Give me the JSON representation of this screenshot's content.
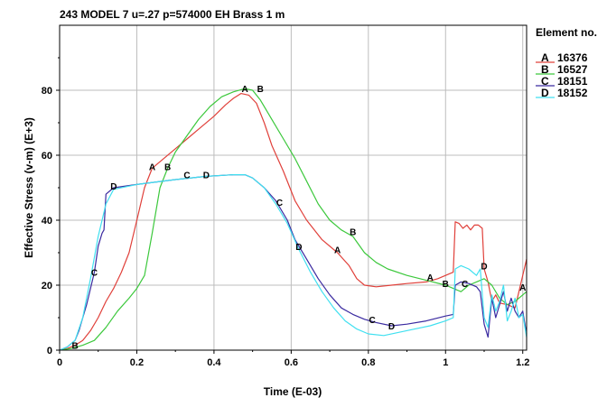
{
  "chart_data": {
    "type": "line",
    "title": "243 MODEL 7 u=.27 p=574000 EH Brass 1 m",
    "xlabel": "Time (E-03)",
    "ylabel": "Effective Stress (v-m) (E+3)",
    "xlim": [
      0,
      1.21
    ],
    "ylim": [
      0,
      100
    ],
    "x_ticks": [
      0,
      0.2,
      0.4,
      0.6,
      0.8,
      1,
      1.2
    ],
    "x_tick_labels": [
      "0",
      "0.2",
      "0.4",
      "0.6",
      "0.8",
      "1",
      "1.2"
    ],
    "y_ticks": [
      0,
      20,
      40,
      60,
      80
    ],
    "y_tick_labels": [
      "0",
      "20",
      "40",
      "60",
      "80"
    ],
    "grid": true,
    "legend": {
      "title": "Element no.",
      "position": "right"
    },
    "series": [
      {
        "letter": "A",
        "name": "16376",
        "color": "#e0403a",
        "markers": [
          [
            0.24,
            56.5
          ],
          [
            0.48,
            80.5
          ],
          [
            0.72,
            31.0
          ],
          [
            0.96,
            22.5
          ],
          [
            1.2,
            19.5
          ]
        ],
        "points": [
          [
            0.0,
            0
          ],
          [
            0.02,
            0.5
          ],
          [
            0.04,
            1.5
          ],
          [
            0.06,
            3
          ],
          [
            0.08,
            6
          ],
          [
            0.1,
            10
          ],
          [
            0.12,
            15
          ],
          [
            0.14,
            19
          ],
          [
            0.16,
            24
          ],
          [
            0.18,
            30
          ],
          [
            0.2,
            40
          ],
          [
            0.22,
            50
          ],
          [
            0.24,
            56
          ],
          [
            0.27,
            59
          ],
          [
            0.3,
            62
          ],
          [
            0.33,
            65
          ],
          [
            0.36,
            68
          ],
          [
            0.4,
            72
          ],
          [
            0.43,
            75.5
          ],
          [
            0.45,
            77.5
          ],
          [
            0.47,
            79
          ],
          [
            0.49,
            78.5
          ],
          [
            0.51,
            76
          ],
          [
            0.53,
            70
          ],
          [
            0.55,
            63
          ],
          [
            0.58,
            55
          ],
          [
            0.61,
            46
          ],
          [
            0.64,
            40
          ],
          [
            0.68,
            34
          ],
          [
            0.72,
            30
          ],
          [
            0.75,
            26
          ],
          [
            0.77,
            22
          ],
          [
            0.79,
            20
          ],
          [
            0.82,
            19.5
          ],
          [
            0.86,
            20
          ],
          [
            0.9,
            20.5
          ],
          [
            0.95,
            21
          ],
          [
            0.98,
            22
          ],
          [
            1.0,
            23
          ],
          [
            1.02,
            24
          ],
          [
            1.025,
            39.5
          ],
          [
            1.035,
            39
          ],
          [
            1.045,
            37.5
          ],
          [
            1.055,
            38.5
          ],
          [
            1.065,
            37
          ],
          [
            1.075,
            38.5
          ],
          [
            1.085,
            38.5
          ],
          [
            1.095,
            37.5
          ],
          [
            1.1,
            25
          ],
          [
            1.11,
            21
          ],
          [
            1.12,
            15
          ],
          [
            1.13,
            17
          ],
          [
            1.14,
            14.5
          ],
          [
            1.16,
            14
          ],
          [
            1.18,
            13
          ],
          [
            1.19,
            18
          ],
          [
            1.2,
            23
          ],
          [
            1.21,
            28
          ]
        ]
      },
      {
        "letter": "B",
        "name": "16527",
        "color": "#3cc83c",
        "markers": [
          [
            0.04,
            1.5
          ],
          [
            0.28,
            56.5
          ],
          [
            0.52,
            80.5
          ],
          [
            0.76,
            36.5
          ],
          [
            1.0,
            20.5
          ]
        ],
        "points": [
          [
            0.0,
            0
          ],
          [
            0.03,
            0.5
          ],
          [
            0.06,
            1.5
          ],
          [
            0.09,
            3
          ],
          [
            0.12,
            7
          ],
          [
            0.15,
            12
          ],
          [
            0.18,
            16
          ],
          [
            0.2,
            19
          ],
          [
            0.22,
            23
          ],
          [
            0.24,
            36
          ],
          [
            0.26,
            50
          ],
          [
            0.28,
            56
          ],
          [
            0.3,
            61
          ],
          [
            0.33,
            66
          ],
          [
            0.36,
            71
          ],
          [
            0.39,
            75
          ],
          [
            0.42,
            78
          ],
          [
            0.45,
            79.5
          ],
          [
            0.48,
            80.5
          ],
          [
            0.5,
            80
          ],
          [
            0.52,
            77
          ],
          [
            0.55,
            71
          ],
          [
            0.58,
            65
          ],
          [
            0.61,
            59
          ],
          [
            0.64,
            52
          ],
          [
            0.67,
            45
          ],
          [
            0.7,
            40
          ],
          [
            0.73,
            37
          ],
          [
            0.76,
            35
          ],
          [
            0.79,
            30
          ],
          [
            0.82,
            27
          ],
          [
            0.85,
            25
          ],
          [
            0.9,
            23
          ],
          [
            0.95,
            21.5
          ],
          [
            1.0,
            20
          ],
          [
            1.02,
            19
          ],
          [
            1.04,
            18
          ],
          [
            1.06,
            20
          ],
          [
            1.08,
            21
          ],
          [
            1.1,
            22
          ],
          [
            1.12,
            20
          ],
          [
            1.14,
            16
          ],
          [
            1.16,
            14
          ],
          [
            1.18,
            15
          ],
          [
            1.2,
            17
          ],
          [
            1.21,
            18
          ]
        ]
      },
      {
        "letter": "C",
        "name": "18151",
        "color": "#3a2aa0",
        "markers": [
          [
            0.09,
            24.0
          ],
          [
            0.33,
            54.0
          ],
          [
            0.57,
            45.5
          ],
          [
            0.81,
            9.5
          ],
          [
            1.05,
            20.5
          ]
        ],
        "points": [
          [
            0.0,
            0
          ],
          [
            0.02,
            1
          ],
          [
            0.04,
            3
          ],
          [
            0.05,
            6
          ],
          [
            0.07,
            14
          ],
          [
            0.09,
            24
          ],
          [
            0.1,
            32
          ],
          [
            0.11,
            36
          ],
          [
            0.115,
            37
          ],
          [
            0.12,
            48
          ],
          [
            0.14,
            50
          ],
          [
            0.2,
            51
          ],
          [
            0.3,
            52.5
          ],
          [
            0.38,
            53.5
          ],
          [
            0.45,
            54
          ],
          [
            0.48,
            54
          ],
          [
            0.5,
            53
          ],
          [
            0.53,
            50
          ],
          [
            0.56,
            46
          ],
          [
            0.59,
            40
          ],
          [
            0.61,
            34
          ],
          [
            0.64,
            28
          ],
          [
            0.67,
            22
          ],
          [
            0.7,
            17
          ],
          [
            0.73,
            13
          ],
          [
            0.76,
            11
          ],
          [
            0.79,
            9.5
          ],
          [
            0.82,
            8.5
          ],
          [
            0.86,
            7.5
          ],
          [
            0.9,
            8
          ],
          [
            0.95,
            9
          ],
          [
            1.0,
            10.5
          ],
          [
            1.02,
            11
          ],
          [
            1.025,
            20
          ],
          [
            1.04,
            21
          ],
          [
            1.06,
            20.5
          ],
          [
            1.08,
            19.5
          ],
          [
            1.09,
            18
          ],
          [
            1.1,
            8
          ],
          [
            1.11,
            4
          ],
          [
            1.12,
            16
          ],
          [
            1.13,
            10
          ],
          [
            1.14,
            14
          ],
          [
            1.15,
            18
          ],
          [
            1.16,
            12
          ],
          [
            1.17,
            16
          ],
          [
            1.18,
            12
          ],
          [
            1.19,
            10
          ],
          [
            1.2,
            12
          ],
          [
            1.21,
            5
          ]
        ]
      },
      {
        "letter": "D",
        "name": "18152",
        "color": "#40e0f0",
        "markers": [
          [
            0.14,
            50.5
          ],
          [
            0.38,
            54.0
          ],
          [
            0.62,
            32.0
          ],
          [
            0.86,
            7.5
          ],
          [
            1.1,
            26.0
          ]
        ],
        "points": [
          [
            0.0,
            0
          ],
          [
            0.02,
            1
          ],
          [
            0.04,
            3
          ],
          [
            0.06,
            10
          ],
          [
            0.08,
            22
          ],
          [
            0.1,
            35
          ],
          [
            0.12,
            45
          ],
          [
            0.14,
            49.5
          ],
          [
            0.2,
            51
          ],
          [
            0.3,
            52.5
          ],
          [
            0.38,
            53.5
          ],
          [
            0.45,
            54
          ],
          [
            0.48,
            54
          ],
          [
            0.5,
            53
          ],
          [
            0.53,
            50
          ],
          [
            0.56,
            45
          ],
          [
            0.59,
            39
          ],
          [
            0.62,
            31
          ],
          [
            0.65,
            24
          ],
          [
            0.68,
            18
          ],
          [
            0.71,
            13
          ],
          [
            0.74,
            9
          ],
          [
            0.77,
            6.5
          ],
          [
            0.8,
            5
          ],
          [
            0.84,
            4.5
          ],
          [
            0.88,
            5.5
          ],
          [
            0.92,
            6.5
          ],
          [
            0.96,
            7.5
          ],
          [
            1.0,
            9
          ],
          [
            1.02,
            10
          ],
          [
            1.025,
            25
          ],
          [
            1.04,
            26
          ],
          [
            1.06,
            25
          ],
          [
            1.08,
            23
          ],
          [
            1.09,
            25
          ],
          [
            1.1,
            10
          ],
          [
            1.11,
            7
          ],
          [
            1.12,
            17
          ],
          [
            1.13,
            12
          ],
          [
            1.14,
            15
          ],
          [
            1.15,
            20
          ],
          [
            1.16,
            9
          ],
          [
            1.17,
            12
          ],
          [
            1.18,
            16
          ],
          [
            1.19,
            10
          ],
          [
            1.2,
            11
          ],
          [
            1.21,
            4
          ]
        ]
      }
    ]
  }
}
